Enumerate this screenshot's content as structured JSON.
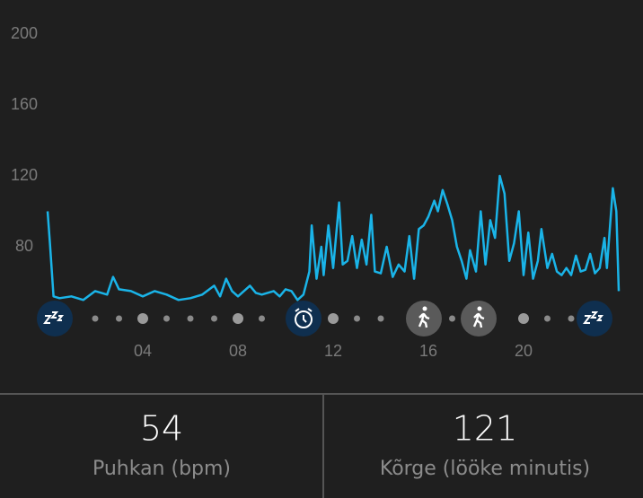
{
  "chart_data": {
    "type": "line",
    "x": [
      0,
      0.1,
      0.25,
      0.5,
      1,
      1.5,
      2,
      2.5,
      2.75,
      3,
      3.5,
      4,
      4.5,
      5,
      5.5,
      6,
      6.5,
      7,
      7.25,
      7.5,
      7.75,
      8,
      8.5,
      8.75,
      9,
      9.5,
      9.75,
      10,
      10.25,
      10.5,
      10.75,
      11,
      11.1,
      11.3,
      11.5,
      11.6,
      11.8,
      12,
      12.25,
      12.4,
      12.6,
      12.8,
      13,
      13.2,
      13.4,
      13.6,
      13.75,
      14,
      14.25,
      14.5,
      14.75,
      15,
      15.2,
      15.4,
      15.6,
      15.8,
      16,
      16.25,
      16.4,
      16.6,
      16.8,
      17,
      17.2,
      17.4,
      17.6,
      17.75,
      18,
      18.2,
      18.4,
      18.6,
      18.8,
      19,
      19.2,
      19.4,
      19.6,
      19.8,
      20,
      20.2,
      20.4,
      20.6,
      20.75,
      21,
      21.2,
      21.4,
      21.6,
      21.8,
      22,
      22.2,
      22.4,
      22.6,
      22.8,
      23,
      23.2,
      23.4,
      23.5,
      23.75,
      23.9,
      24
    ],
    "series": [
      {
        "color": "#1ab4e8",
        "values": [
          100,
          82,
          52,
          51,
          52,
          50,
          55,
          53,
          63,
          56,
          55,
          52,
          55,
          53,
          50,
          51,
          53,
          58,
          52,
          62,
          55,
          52,
          58,
          54,
          53,
          55,
          52,
          56,
          55,
          50,
          53,
          66,
          92,
          62,
          80,
          64,
          92,
          68,
          105,
          70,
          72,
          86,
          68,
          84,
          70,
          98,
          66,
          65,
          80,
          63,
          70,
          66,
          86,
          62,
          90,
          92,
          97,
          106,
          100,
          112,
          104,
          95,
          80,
          72,
          62,
          78,
          66,
          100,
          70,
          95,
          85,
          120,
          110,
          72,
          82,
          100,
          64,
          88,
          62,
          72,
          90,
          68,
          76,
          66,
          64,
          68,
          64,
          75,
          66,
          67,
          76,
          65,
          68,
          85,
          68,
          113,
          100,
          55
        ]
      }
    ],
    "xlim": [
      0,
      24
    ],
    "xticks": [
      {
        "value": 4,
        "label": "04"
      },
      {
        "value": 8,
        "label": "08"
      },
      {
        "value": 12,
        "label": "12"
      },
      {
        "value": 16,
        "label": "16"
      },
      {
        "value": 20,
        "label": "20"
      }
    ],
    "ylim": [
      40,
      200
    ],
    "yticks": [
      80,
      120,
      160,
      200
    ]
  },
  "stats": [
    {
      "value": "54",
      "label": "Puhkan (bpm)"
    },
    {
      "value": "121",
      "label": "Kõrge (lööke minutis)"
    }
  ]
}
